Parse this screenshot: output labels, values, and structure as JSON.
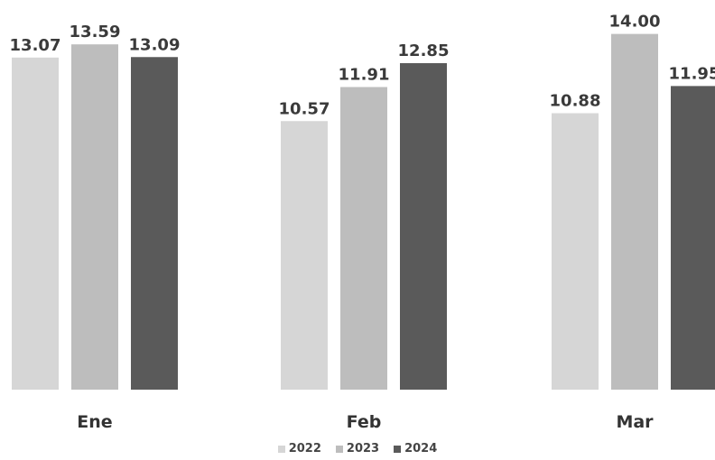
{
  "chart_data": {
    "type": "bar",
    "categories": [
      "Ene",
      "Feb",
      "Mar"
    ],
    "series": [
      {
        "name": "2022",
        "values": [
          13.07,
          10.57,
          10.88
        ],
        "color": "#d6d6d6"
      },
      {
        "name": "2023",
        "values": [
          13.59,
          11.91,
          14.0
        ],
        "color": "#bdbdbd"
      },
      {
        "name": "2024",
        "values": [
          13.09,
          12.85,
          11.95
        ],
        "color": "#5a5a5a"
      }
    ],
    "value_labels": [
      [
        "13.07",
        "10.57",
        "10.88"
      ],
      [
        "13.59",
        "11.91",
        "14.00"
      ],
      [
        "13.09",
        "12.85",
        "11.95"
      ]
    ],
    "title": "",
    "xlabel": "",
    "ylabel": "",
    "ylim": [
      0,
      14.2
    ],
    "grid": false,
    "legend_position": "bottom"
  }
}
